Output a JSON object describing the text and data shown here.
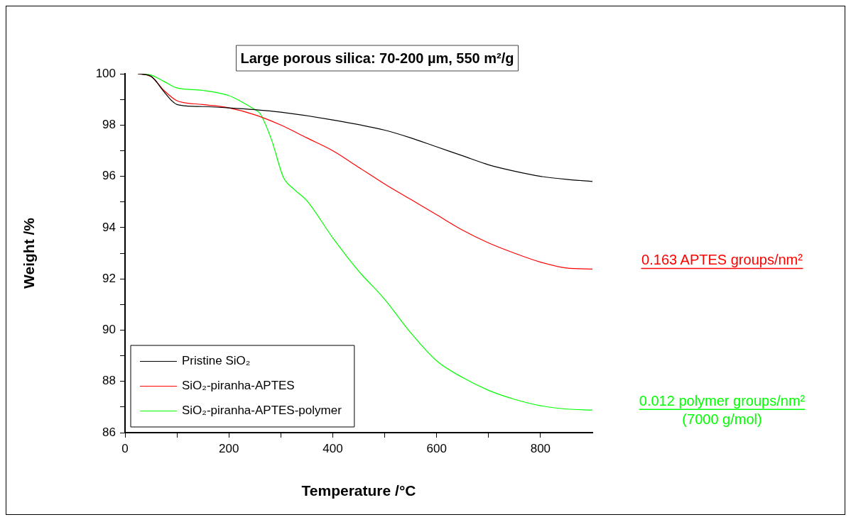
{
  "chart_data": {
    "type": "line",
    "title": "Large porous silica: 70-200 µm, 550 m²/g",
    "xlabel": "Temperature /°C",
    "ylabel": "Weight /%",
    "xlim": [
      0,
      900
    ],
    "xticks": [
      0,
      {
        "value": 100,
        "label": null
      },
      200,
      {
        "value": 300,
        "label": null
      },
      400,
      {
        "value": 500,
        "label": null
      },
      600,
      {
        "value": 700,
        "label": null
      },
      800
    ],
    "ylim": [
      86,
      100
    ],
    "yticks": [
      86,
      {
        "value": 87,
        "label": null
      },
      88,
      {
        "value": 89,
        "label": null
      },
      90,
      {
        "value": 91,
        "label": null
      },
      92,
      {
        "value": 93,
        "label": null
      },
      94,
      {
        "value": 95,
        "label": null
      },
      96,
      {
        "value": 97,
        "label": null
      },
      98,
      {
        "value": 99,
        "label": null
      },
      100
    ],
    "grid": false,
    "legend": "bottom left",
    "marker": "none",
    "line_style": "solid",
    "series": [
      {
        "name": "Pristine SiO₂",
        "color": "#000000",
        "x": [
          25,
          50,
          75,
          90,
          100,
          150,
          200,
          250,
          300,
          400,
          500,
          550,
          600,
          650,
          700,
          750,
          800,
          850,
          900
        ],
        "values": [
          100,
          99.9,
          99.3,
          98.95,
          98.8,
          98.72,
          98.67,
          98.6,
          98.5,
          98.2,
          97.8,
          97.5,
          97.15,
          96.8,
          96.45,
          96.2,
          96.0,
          95.88,
          95.8
        ]
      },
      {
        "name": "SiO₂-piranha-APTES",
        "color": "#ff0000",
        "x": [
          25,
          50,
          75,
          100,
          150,
          200,
          250,
          300,
          350,
          400,
          450,
          500,
          550,
          600,
          650,
          700,
          750,
          800,
          850,
          900
        ],
        "values": [
          100,
          99.9,
          99.35,
          98.95,
          98.8,
          98.67,
          98.4,
          98.0,
          97.5,
          97.0,
          96.35,
          95.7,
          95.1,
          94.5,
          93.9,
          93.4,
          93.0,
          92.65,
          92.42,
          92.38
        ]
      },
      {
        "name": "SiO₂-piranha-APTES-polymer",
        "color": "#00ff00",
        "x": [
          25,
          50,
          75,
          100,
          150,
          200,
          225,
          250,
          260,
          282,
          305,
          325,
          350,
          400,
          450,
          500,
          550,
          600,
          650,
          700,
          750,
          800,
          850,
          900
        ],
        "values": [
          100,
          99.95,
          99.7,
          99.45,
          99.35,
          99.15,
          98.9,
          98.6,
          98.45,
          97.43,
          95.96,
          95.5,
          95.05,
          93.6,
          92.3,
          91.2,
          89.9,
          88.8,
          88.15,
          87.65,
          87.3,
          87.05,
          86.92,
          86.88
        ]
      }
    ],
    "annotations": [
      "0.163 APTES groups/nm²",
      "0.012 polymer groups/nm²\n(7000 g/mol)"
    ]
  }
}
